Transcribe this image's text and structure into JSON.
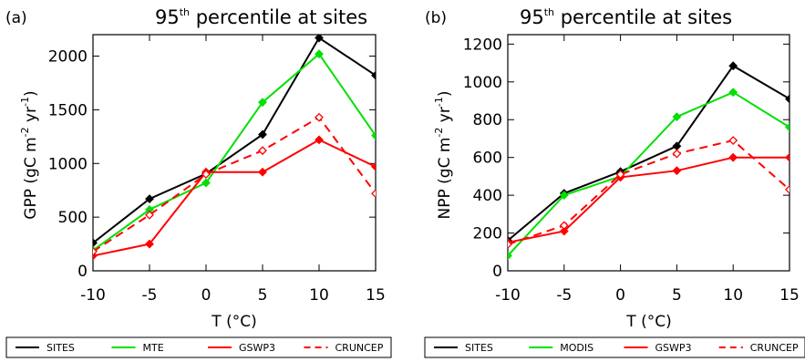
{
  "chart_data": [
    {
      "type": "line",
      "panel_label": "(a)",
      "title": "95",
      "title_sup": "th",
      "title_rest": " percentile at sites",
      "xlabel": "T (°C)",
      "ylabel": "GPP (gC m",
      "ylabel_sup1": "-2",
      "ylabel_mid": " yr",
      "ylabel_sup2": "-1",
      "ylabel_end": ")",
      "xlim": [
        -10,
        15
      ],
      "ylim": [
        0,
        2200
      ],
      "x": [
        -10,
        -5,
        0,
        5,
        10,
        15
      ],
      "xticks": [
        "-10",
        "-5",
        "0",
        "5",
        "10",
        "15"
      ],
      "yticks": [
        0,
        500,
        1000,
        1500,
        2000
      ],
      "series": [
        {
          "name": "SITES",
          "color": "#000000",
          "dash": "solid",
          "marker": "filled",
          "values": [
            260,
            670,
            905,
            1270,
            2170,
            1820
          ]
        },
        {
          "name": "MTE",
          "color": "#00e000",
          "dash": "solid",
          "marker": "filled",
          "values": [
            190,
            570,
            820,
            1570,
            2020,
            1260
          ]
        },
        {
          "name": "GSWP3",
          "color": "#ff0000",
          "dash": "solid",
          "marker": "filled",
          "values": [
            140,
            250,
            920,
            920,
            1220,
            970
          ]
        },
        {
          "name": "CRUNCEP",
          "color": "#ff0000",
          "dash": "dashed",
          "marker": "open",
          "values": [
            180,
            520,
            900,
            1120,
            1430,
            720
          ]
        }
      ]
    },
    {
      "type": "line",
      "panel_label": "(b)",
      "title": "95",
      "title_sup": "th",
      "title_rest": " percentile at sites",
      "xlabel": "T (°C)",
      "ylabel": "NPP (gC m",
      "ylabel_sup1": "-2",
      "ylabel_mid": " yr",
      "ylabel_sup2": "-1",
      "ylabel_end": ")",
      "xlim": [
        -10,
        15
      ],
      "ylim": [
        0,
        1250
      ],
      "x": [
        -10,
        -5,
        0,
        5,
        10,
        15
      ],
      "xticks": [
        "-10",
        "-5",
        "0",
        "5",
        "10",
        "15"
      ],
      "yticks": [
        0,
        200,
        400,
        600,
        800,
        1000,
        1200
      ],
      "series": [
        {
          "name": "SITES",
          "color": "#000000",
          "dash": "solid",
          "marker": "filled",
          "values": [
            160,
            410,
            525,
            660,
            1085,
            910
          ]
        },
        {
          "name": "MODIS",
          "color": "#00e000",
          "dash": "solid",
          "marker": "filled",
          "values": [
            80,
            400,
            500,
            815,
            945,
            760
          ]
        },
        {
          "name": "GSWP3",
          "color": "#ff0000",
          "dash": "solid",
          "marker": "filled",
          "values": [
            150,
            210,
            495,
            530,
            600,
            600
          ]
        },
        {
          "name": "CRUNCEP",
          "color": "#ff0000",
          "dash": "dashed",
          "marker": "open",
          "values": [
            140,
            240,
            510,
            620,
            690,
            430
          ]
        }
      ]
    }
  ]
}
